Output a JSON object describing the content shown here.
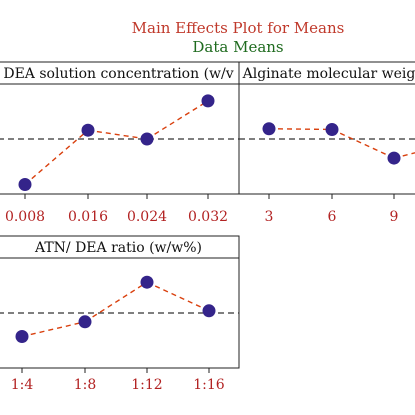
{
  "title": "Main Effects Plot for Means",
  "subtitle": "Data Means",
  "colors": {
    "title": "#c0392b",
    "subtitle": "#1f6b1f",
    "marker": "#34248a",
    "connector": "#d9400e",
    "tick_label": "#b22222",
    "mean_line": "#333333"
  },
  "chart_data": [
    {
      "type": "line",
      "title": "DEA solution concentration (w/v",
      "categories": [
        "0.008",
        "0.016",
        "0.024",
        "0.032"
      ],
      "values": [
        -0.62,
        0.12,
        0.0,
        0.52
      ],
      "mean": 0.0,
      "ylim": [
        -0.75,
        0.75
      ],
      "grid": false
    },
    {
      "type": "line",
      "title": "Alginate molecular weig",
      "categories": [
        "3",
        "6",
        "9"
      ],
      "values": [
        0.14,
        0.13,
        -0.26
      ],
      "mean": 0.0,
      "ylim": [
        -0.75,
        0.75
      ],
      "grid": false
    },
    {
      "type": "line",
      "title": "ATN/ DEA ratio (w/w%)",
      "categories": [
        "1:4",
        "1:8",
        "1:12",
        "1:16"
      ],
      "values": [
        -0.32,
        -0.12,
        0.42,
        0.03
      ],
      "mean": 0.0,
      "ylim": [
        -0.75,
        0.75
      ],
      "grid": false
    }
  ]
}
